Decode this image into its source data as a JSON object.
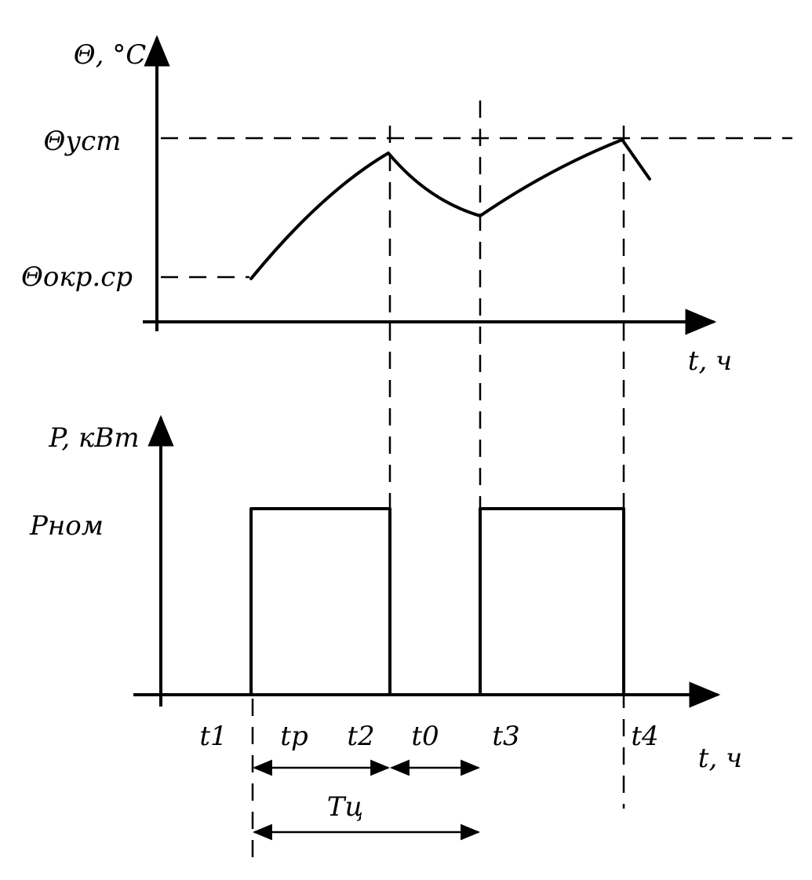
{
  "top_graph": {
    "y_label": "Θ, °C",
    "x_label": "t, ч",
    "level_high": "Θуст",
    "level_low": "Θокр.ср"
  },
  "bottom_graph": {
    "y_label": "P, кВт",
    "x_label": "t, ч",
    "level": "Pном",
    "time_labels": [
      "t1",
      "tр",
      "t2",
      "t0",
      "t3",
      "t4"
    ],
    "period_label": "Tц"
  }
}
